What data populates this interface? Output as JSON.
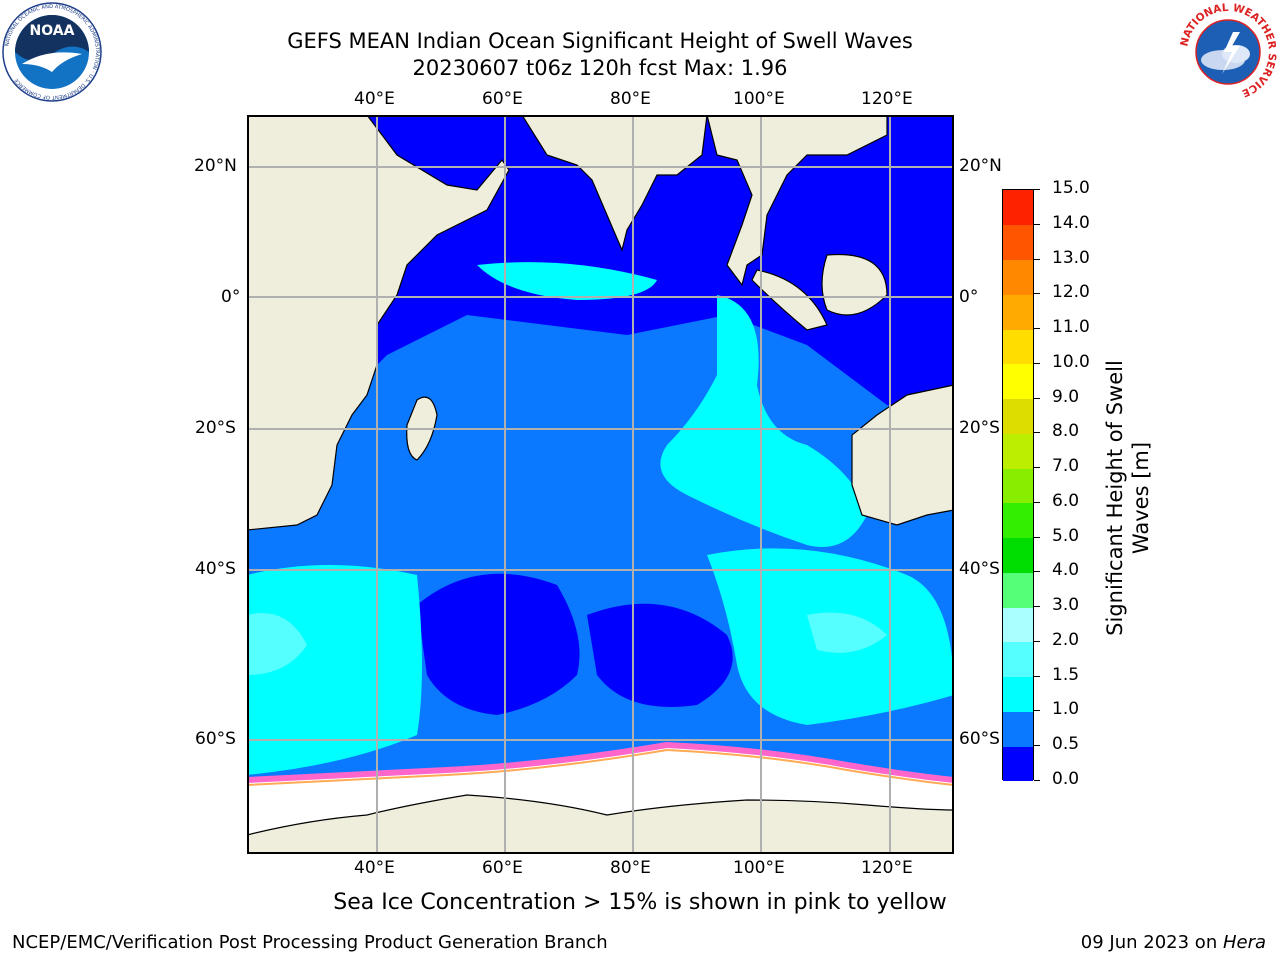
{
  "header": {
    "title_line1": "GEFS MEAN Indian Ocean Significant Height of Swell Waves",
    "title_line2": "20230607 t06z 120h fcst   Max: 1.96"
  },
  "logos": {
    "left": {
      "name": "noaa-logo",
      "text": "NOAA",
      "ring_text": "NATIONAL OCEANIC AND ATMOSPHERIC ADMINISTRATION · U.S. DEPARTMENT OF COMMERCE"
    },
    "right": {
      "name": "nws-logo",
      "ring_text": "NATIONAL WEATHER SERVICE"
    }
  },
  "map": {
    "lon_labels": [
      "40°E",
      "60°E",
      "80°E",
      "100°E",
      "120°E"
    ],
    "lat_labels": [
      "20°N",
      "0°",
      "20°S",
      "40°S",
      "60°S"
    ],
    "colors": {
      "land": "#efeedd",
      "ice": "#ffffff",
      "grid": "#b0b0b0",
      "ice_edge": "#ff66cc"
    }
  },
  "colorbar": {
    "title_line1": "Significant Height of Swell",
    "title_line2": "Waves [m]",
    "ticks": [
      "0.0",
      "0.5",
      "1.0",
      "1.5",
      "2.0",
      "3.0",
      "4.0",
      "5.0",
      "6.0",
      "7.0",
      "8.0",
      "9.0",
      "10.0",
      "11.0",
      "12.0",
      "13.0",
      "14.0",
      "15.0"
    ],
    "colors": [
      "#0000ff",
      "#0a78ff",
      "#00ffff",
      "#55ffff",
      "#aaffff",
      "#55ff77",
      "#00dd00",
      "#33ee00",
      "#88ee00",
      "#bbee00",
      "#dddd00",
      "#ffff00",
      "#ffdd00",
      "#ffaa00",
      "#ff8800",
      "#ff5500",
      "#ff2200",
      "#ff0000"
    ]
  },
  "caption": "Sea Ice Concentration > 15% is shown in pink to yellow",
  "footer": {
    "left": "NCEP/EMC/Verification Post Processing Product Generation Branch",
    "right_date": "09 Jun 2023 on ",
    "right_host": "Hera"
  }
}
